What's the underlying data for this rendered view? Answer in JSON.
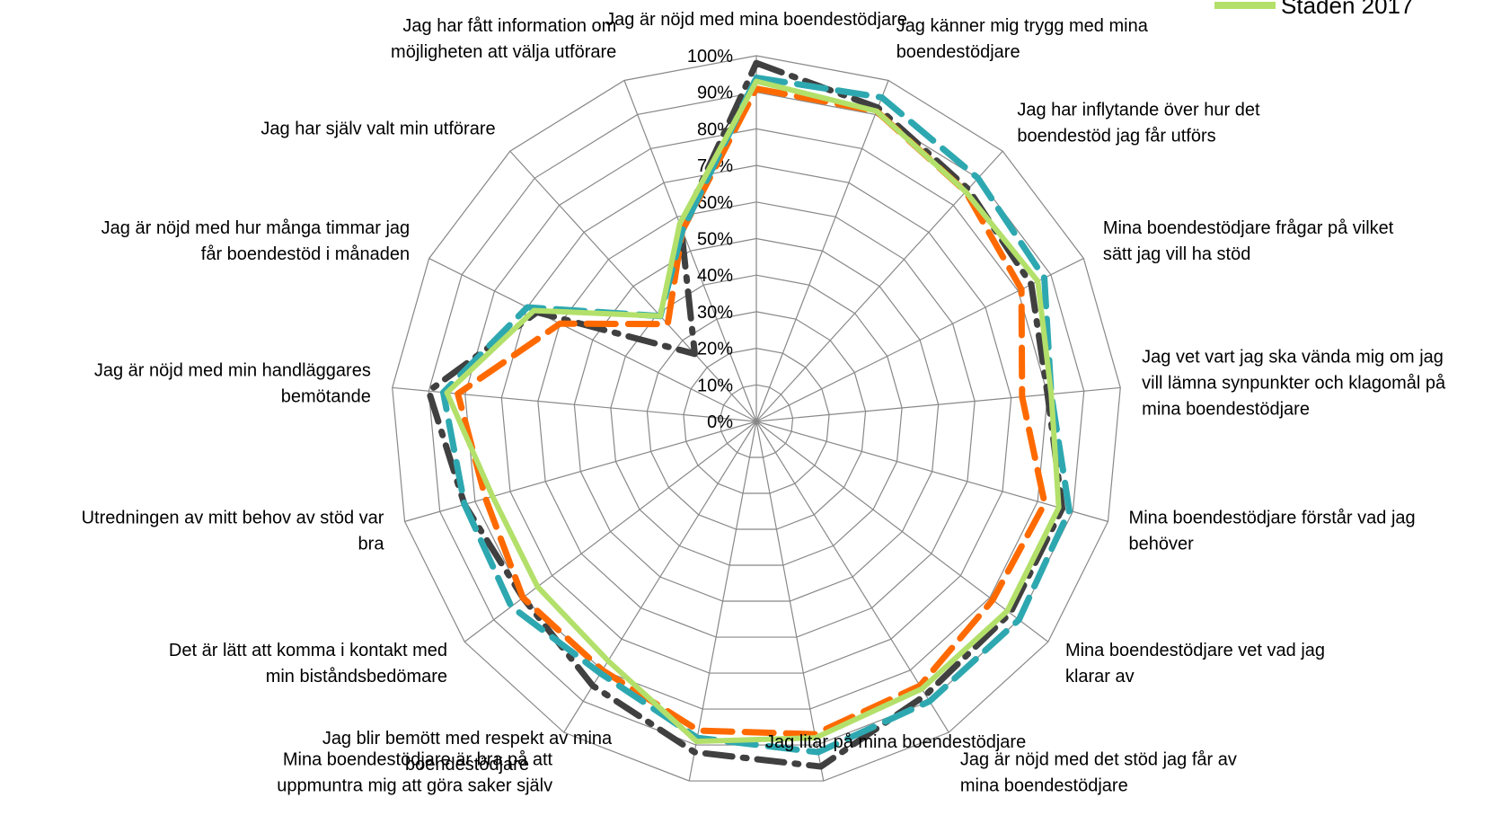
{
  "chart_data": {
    "type": "radar",
    "title": "",
    "ticks": [
      "0%",
      "10%",
      "20%",
      "30%",
      "40%",
      "50%",
      "60%",
      "70%",
      "80%",
      "90%",
      "100%"
    ],
    "rlim": [
      0,
      100
    ],
    "grid": true,
    "legend_position": "top-right",
    "categories": [
      [
        "Jag är nöjd med mina boendestödjare"
      ],
      [
        "Jag känner mig trygg med mina",
        "boendestödjare"
      ],
      [
        "Jag har inflytande över hur det",
        "boendestöd jag får utförs"
      ],
      [
        "Mina boendestödjare frågar på vilket",
        "sätt jag vill ha stöd"
      ],
      [
        "Jag vet vart jag ska vända mig om jag",
        "vill lämna synpunkter och klagomål på",
        "mina boendestödjare"
      ],
      [
        "Mina boendestödjare förstår vad jag",
        "behöver"
      ],
      [
        "Mina boendestödjare vet vad jag",
        "klarar av"
      ],
      [
        "Jag är nöjd med det stöd jag får av",
        "mina boendestödjare"
      ],
      [
        "Jag litar på mina boendestödjare"
      ],
      [
        "Jag blir bemött med respekt av mina",
        "boendestödjare"
      ],
      [
        "Mina boendestödjare är bra på att",
        "uppmuntra mig att göra saker själv"
      ],
      [
        "Det är lätt att komma i kontakt med",
        "min biståndsbedömare"
      ],
      [
        "Utredningen av mitt behov av stöd var",
        "bra"
      ],
      [
        "Jag är nöjd med min handläggares",
        "bemötande"
      ],
      [
        "Jag är nöjd med hur många timmar jag",
        "får boendestöd i månaden"
      ],
      [
        "Jag har själv valt min utförare"
      ],
      [
        "Jag har fått information om",
        "möjligheten att välja utförare"
      ]
    ],
    "series": [
      {
        "name": "",
        "color": "#404040",
        "style": "dash-dot",
        "values": [
          98,
          92,
          86,
          84,
          80,
          87,
          87,
          88,
          96,
          92,
          85,
          80,
          83,
          90,
          67,
          25,
          57
        ]
      },
      {
        "name": "",
        "color": "#ff6a00",
        "style": "dash",
        "values": [
          91,
          91,
          85,
          81,
          73,
          82,
          81,
          85,
          87,
          86,
          80,
          80,
          77,
          82,
          60,
          36,
          56
        ]
      },
      {
        "name": "",
        "color": "#2ea8b0",
        "style": "dash",
        "values": [
          94,
          95,
          90,
          88,
          81,
          89,
          90,
          90,
          92,
          88,
          81,
          84,
          83,
          86,
          70,
          39,
          56
        ]
      },
      {
        "name": "Staden 2017",
        "color": "#b3e06a",
        "style": "solid",
        "values": [
          93,
          91,
          85,
          86,
          81,
          86,
          86,
          86,
          88,
          89,
          77,
          75,
          75,
          85,
          68,
          39,
          58
        ]
      }
    ]
  }
}
